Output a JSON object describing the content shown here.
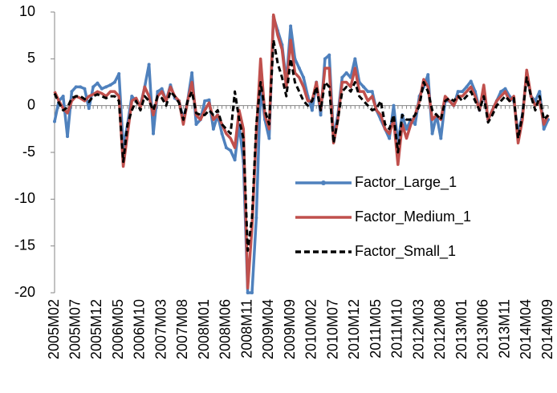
{
  "chart_data": {
    "type": "line",
    "categories": [
      "2005M02",
      null,
      null,
      null,
      null,
      "2005M07",
      null,
      null,
      null,
      null,
      "2005M12",
      null,
      null,
      null,
      null,
      "2006M05",
      null,
      null,
      null,
      null,
      "2006M10",
      null,
      null,
      null,
      null,
      "2007M03",
      null,
      null,
      null,
      null,
      "2007M08",
      null,
      null,
      null,
      null,
      "2008M01",
      null,
      null,
      null,
      null,
      "2008M06",
      null,
      null,
      null,
      null,
      "2008M11",
      null,
      null,
      null,
      null,
      "2009M04",
      null,
      null,
      null,
      null,
      "2009M09",
      null,
      null,
      null,
      null,
      "2010M02",
      null,
      null,
      null,
      null,
      "2010M07",
      null,
      null,
      null,
      null,
      "2010M12",
      null,
      null,
      null,
      null,
      "2011M05",
      null,
      null,
      null,
      null,
      "2011M10",
      null,
      null,
      null,
      null,
      "2012M03",
      null,
      null,
      null,
      null,
      "2012M08",
      null,
      null,
      null,
      null,
      "2013M01",
      null,
      null,
      null,
      null,
      "2013M06",
      null,
      null,
      null,
      null,
      "2013M11",
      null,
      null,
      null,
      null,
      "2014M04",
      null,
      null,
      null,
      null,
      "2014M09"
    ],
    "series": [
      {
        "name": "Factor_Large_1",
        "color": "#4f81bd",
        "dash": false,
        "markers": true,
        "values": [
          -1.7,
          0.5,
          1.0,
          -3.3,
          1.5,
          2.0,
          2.0,
          1.8,
          -0.3,
          2.0,
          2.4,
          1.8,
          2.0,
          2.2,
          2.5,
          3.4,
          -4.5,
          -2.0,
          1.0,
          0.5,
          0.0,
          2.0,
          4.4,
          -3.0,
          1.5,
          1.8,
          0.5,
          2.2,
          0.8,
          0.5,
          -1.5,
          0.5,
          3.5,
          -2.0,
          -1.5,
          0.5,
          0.6,
          -2.5,
          -1.0,
          -3.0,
          -4.5,
          -4.8,
          -5.8,
          -2.0,
          -6.0,
          -20,
          -20,
          -12,
          2.0,
          -1.5,
          -3.5,
          9.5,
          8.0,
          6.5,
          2.5,
          8.5,
          5.0,
          4.0,
          3.0,
          1.0,
          -0.5,
          2.5,
          -1.0,
          5.0,
          5.4,
          -3.5,
          -1.0,
          3.0,
          3.5,
          3.0,
          5.0,
          2.5,
          2.0,
          1.5,
          1.5,
          -0.5,
          -1.5,
          -2.5,
          -3.5,
          0.0,
          -4.0,
          -1.0,
          -2.5,
          -1.5,
          -2.0,
          1.0,
          2.0,
          3.3,
          -3.0,
          -1.0,
          -3.5,
          0.5,
          0.5,
          0.0,
          1.5,
          1.5,
          2.0,
          2.6,
          1.5,
          -0.5,
          1.5,
          -1.5,
          -0.5,
          0.5,
          1.5,
          1.8,
          1.0,
          0.5,
          -3.0,
          -1.0,
          3.5,
          1.0,
          0.5,
          1.5,
          -2.5,
          -1.5
        ]
      },
      {
        "name": "Factor_Medium_1",
        "color": "#c0504d",
        "dash": false,
        "markers": false,
        "values": [
          1.5,
          0.5,
          -0.3,
          -0.8,
          0.5,
          1.0,
          0.8,
          0.5,
          1.0,
          1.2,
          1.5,
          1.3,
          1.0,
          1.5,
          1.5,
          1.0,
          -6.5,
          -3.0,
          0.5,
          0.8,
          -0.2,
          2.0,
          1.0,
          -1.0,
          1.0,
          1.5,
          0.5,
          2.0,
          1.0,
          0.5,
          -2.0,
          0.5,
          2.5,
          -1.0,
          -1.5,
          -0.5,
          0.3,
          -1.5,
          -1.0,
          -2.0,
          -3.0,
          -3.5,
          -4.5,
          -0.5,
          -2.5,
          -19.5,
          -13,
          -3.0,
          5.0,
          -1.0,
          -2.5,
          9.7,
          7.5,
          6.0,
          2.0,
          7.0,
          3.5,
          3.0,
          2.0,
          0.5,
          0.5,
          2.5,
          -0.5,
          4.0,
          4.0,
          -4.0,
          -1.5,
          2.5,
          2.5,
          2.0,
          4.0,
          1.5,
          1.5,
          0.5,
          1.0,
          -0.5,
          -1.0,
          -2.5,
          -3.0,
          -1.5,
          -6.3,
          -2.0,
          -3.5,
          -2.0,
          -1.0,
          0.5,
          2.8,
          2.0,
          -1.5,
          -1.0,
          -1.5,
          1.0,
          0.5,
          0.0,
          1.0,
          1.0,
          1.5,
          2.0,
          1.0,
          -0.5,
          2.2,
          -1.5,
          -0.5,
          0.5,
          1.0,
          1.5,
          0.5,
          1.0,
          -4.0,
          -1.5,
          3.8,
          1.0,
          0.0,
          0.5,
          -2.0,
          -1.0
        ]
      },
      {
        "name": "Factor_Small_1",
        "color": "#000000",
        "dash": true,
        "markers": false,
        "values": [
          1.3,
          0.3,
          -0.5,
          -0.2,
          0.8,
          1.0,
          1.0,
          0.7,
          0.4,
          1.0,
          1.2,
          1.0,
          0.8,
          1.0,
          1.0,
          0.5,
          -6.0,
          -2.0,
          -0.5,
          0.5,
          -0.5,
          1.0,
          0.5,
          -0.5,
          1.0,
          0.8,
          0.0,
          1.5,
          1.0,
          0.3,
          -1.5,
          0.5,
          1.5,
          -0.8,
          -1.0,
          -1.0,
          -0.5,
          -1.0,
          -0.5,
          -2.0,
          -2.5,
          -3.0,
          1.5,
          -1.5,
          -3.5,
          -15.5,
          -12,
          -2.0,
          2.5,
          -0.5,
          -2.0,
          7.0,
          4.5,
          3.0,
          1.0,
          5.0,
          2.5,
          1.5,
          0.5,
          0.0,
          0.5,
          2.0,
          -0.5,
          2.5,
          2.0,
          -4.0,
          -1.5,
          1.5,
          2.0,
          1.5,
          2.5,
          1.0,
          0.5,
          0.0,
          -0.5,
          -0.3,
          0.5,
          -2.0,
          -2.5,
          -1.0,
          -5.0,
          -1.0,
          -1.5,
          -1.5,
          -1.0,
          0.0,
          2.5,
          1.5,
          -0.5,
          -1.0,
          -1.5,
          0.5,
          0.8,
          0.5,
          1.0,
          0.5,
          1.0,
          1.5,
          0.5,
          -0.5,
          1.0,
          -1.8,
          -1.0,
          0.0,
          0.5,
          1.0,
          0.5,
          0.8,
          -3.5,
          -1.0,
          3.0,
          1.0,
          -0.5,
          1.0,
          -1.5,
          -1.0
        ]
      }
    ],
    "ylim": [
      -20,
      10
    ],
    "yticks": [
      10,
      5,
      0,
      -5,
      -10,
      -15,
      -20
    ],
    "grid": false,
    "legend": "right"
  }
}
